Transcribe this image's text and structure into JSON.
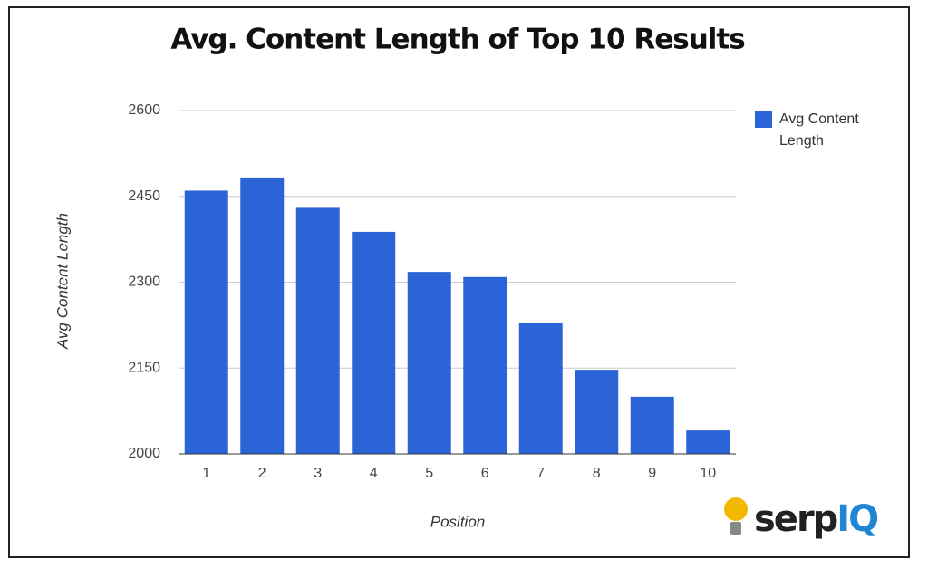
{
  "chart_data": {
    "type": "bar",
    "title": "Avg. Content Length of Top 10 Results",
    "x_label": "Position",
    "y_label": "Avg Content Length",
    "categories": [
      "1",
      "2",
      "3",
      "4",
      "5",
      "6",
      "7",
      "8",
      "9",
      "10"
    ],
    "series": [
      {
        "name": "Avg Content Length",
        "color": "#2a64d6",
        "values": [
          2460,
          2483,
          2430,
          2388,
          2318,
          2309,
          2228,
          2147,
          2100,
          2041
        ]
      }
    ],
    "ylim": [
      2000,
      2600
    ],
    "yticks": [
      2000,
      2150,
      2300,
      2450,
      2600
    ],
    "grid": true,
    "legend": "right"
  },
  "brand": [
    "serp",
    "IQ"
  ]
}
